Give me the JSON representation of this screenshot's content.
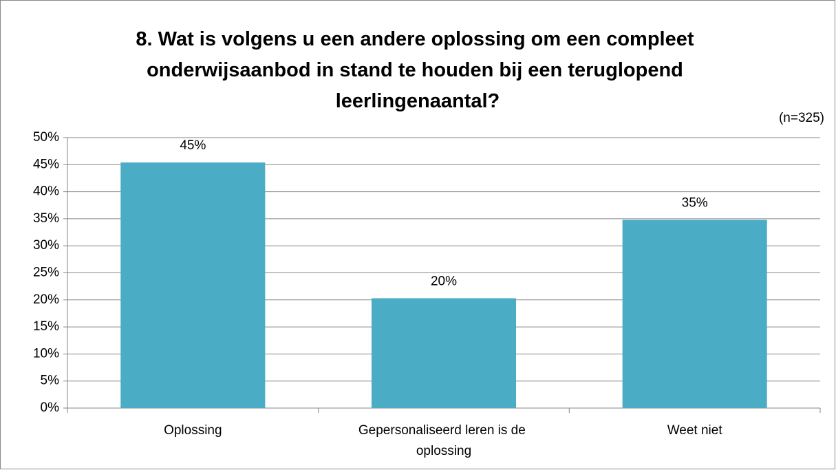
{
  "chart_data": {
    "type": "bar",
    "title": "8. Wat is volgens u een andere oplossing om een compleet onderwijsaanbod in stand te houden bij een teruglopend leerlingenaantal?",
    "subtitle": "(n=325)",
    "categories": [
      "Oplossing",
      "Gepersonaliseerd leren is de oplossing",
      "Weet niet"
    ],
    "values": [
      45.4,
      20.3,
      34.8
    ],
    "value_labels": [
      "45%",
      "20%",
      "35%"
    ],
    "color": "#4bacc6",
    "ylim": [
      0,
      50
    ],
    "yticks": [
      {
        "value": 0,
        "label": "0%"
      },
      {
        "value": 5,
        "label": "5%"
      },
      {
        "value": 10,
        "label": "10%"
      },
      {
        "value": 15,
        "label": "15%"
      },
      {
        "value": 20,
        "label": "20%"
      },
      {
        "value": 25,
        "label": "25%"
      },
      {
        "value": 30,
        "label": "30%"
      },
      {
        "value": 35,
        "label": "35%"
      },
      {
        "value": 40,
        "label": "40%"
      },
      {
        "value": 45,
        "label": "45%"
      },
      {
        "value": 50,
        "label": "50%"
      }
    ],
    "grid": true
  }
}
